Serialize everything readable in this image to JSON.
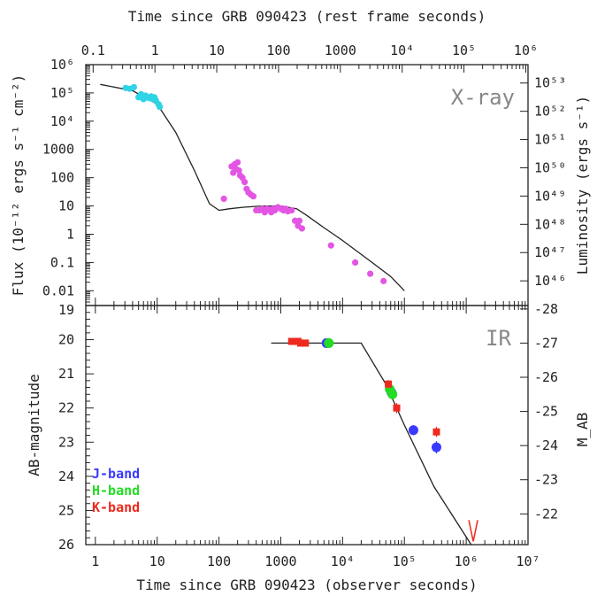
{
  "chart_data": [
    {
      "type": "scatter",
      "panel": "top",
      "panel_label": "X-ray",
      "x_top_label": "Time since GRB 090423 (rest frame seconds)",
      "y_left_label": "Flux (10⁻¹² ergs s⁻¹ cm⁻²)",
      "y_right_label": "Luminosity (ergs s⁻¹)",
      "x_scale": "log",
      "y_scale": "log",
      "xlim_observer_seconds": [
        0.7,
        10000000
      ],
      "ylim_flux": [
        0.003,
        1000000
      ],
      "x_top_ticks": [
        "0.1",
        "1",
        "10",
        "100",
        "1000",
        "10⁴",
        "10⁵",
        "10⁶"
      ],
      "y_left_ticks": [
        "0.01",
        "0.1",
        "1",
        "10",
        "100",
        "1000",
        "10⁴",
        "10⁵",
        "10⁶"
      ],
      "y_right_ticks": [
        "10⁴⁶",
        "10⁴⁷",
        "10⁴⁸",
        "10⁴⁹",
        "10⁵⁰",
        "10⁵¹",
        "10⁵²",
        "10⁵³"
      ],
      "series": [
        {
          "color": "#2ed3e6",
          "x": [
            3.1,
            3.6,
            4.2,
            5.0,
            5.5,
            6.0,
            6.5,
            7.0,
            7.5,
            8.0,
            8.5,
            9.0,
            9.5,
            10.5,
            11.0
          ],
          "y": [
            150000,
            140000,
            160000,
            70000,
            90000,
            60000,
            80000,
            70000,
            65000,
            75000,
            60000,
            70000,
            55000,
            40000,
            32000
          ]
        },
        {
          "color": "#e455e4",
          "x": [
            120,
            160,
            170,
            180,
            190,
            200,
            210,
            220,
            240,
            260,
            280,
            300,
            330,
            360,
            400,
            450,
            500,
            550,
            600,
            650,
            700,
            750,
            800,
            900,
            1000,
            1100,
            1200,
            1300,
            1500,
            1700,
            1900,
            2000,
            2200,
            6500,
            16000,
            28000,
            46000
          ],
          "y": [
            18,
            250,
            150,
            300,
            200,
            350,
            180,
            120,
            100,
            70,
            40,
            30,
            25,
            22,
            7,
            7,
            8,
            6,
            8,
            7.5,
            6,
            8,
            7,
            9,
            8,
            7,
            8,
            6.5,
            7,
            3,
            2,
            3,
            1.6,
            0.4,
            0.1,
            0.04,
            0.022
          ]
        }
      ],
      "model_curve": {
        "color": "#222222",
        "x": [
          1.2,
          4,
          10,
          20,
          40,
          70,
          100,
          150,
          250,
          500,
          1000,
          1800,
          2500,
          5000,
          10000,
          30000,
          60000,
          100000
        ],
        "y": [
          200000,
          120000,
          40000,
          4000,
          180,
          12,
          7,
          8,
          9,
          10,
          10,
          8,
          5,
          1.7,
          0.6,
          0.1,
          0.032,
          0.01
        ]
      }
    },
    {
      "type": "scatter",
      "panel": "bottom",
      "panel_label": "IR",
      "x_bottom_label": "Time since GRB 090423 (observer seconds)",
      "y_left_label": "AB-magnitude",
      "y_right_label": "M_AB",
      "x_scale": "log",
      "xlim_observer_seconds": [
        0.7,
        10000000
      ],
      "ylim_ab_magnitude": [
        26,
        19
      ],
      "x_bottom_ticks": [
        "1",
        "10",
        "100",
        "1000",
        "10⁴",
        "10⁵",
        "10⁶",
        "10⁷"
      ],
      "y_left_ticks": [
        "19",
        "20",
        "21",
        "22",
        "23",
        "24",
        "25",
        "26"
      ],
      "y_right_ticks": [
        "-28",
        "-27",
        "-26",
        "-25",
        "-24",
        "-23",
        "-22"
      ],
      "legend": [
        "J-band",
        "H-band",
        "K-band"
      ],
      "legend_placement": "lower-left",
      "series": [
        {
          "name": "J-band",
          "color": "#3a3aff",
          "marker": "circle",
          "x": [
            5500,
            62000,
            140000,
            330000
          ],
          "y": [
            20.1,
            21.55,
            22.65,
            23.15
          ],
          "yerr": [
            0.08,
            0.12,
            0.15,
            0.18
          ]
        },
        {
          "name": "H-band",
          "color": "#22dd22",
          "marker": "circle",
          "x": [
            6000,
            58000,
            64000
          ],
          "y": [
            20.1,
            21.45,
            21.6
          ],
          "yerr": [
            0.08,
            0.12,
            0.12
          ]
        },
        {
          "name": "K-band",
          "color": "#ee2a1e",
          "marker": "square",
          "x": [
            1500,
            1700,
            1900,
            2100,
            2500,
            55000,
            75000,
            330000
          ],
          "y": [
            20.05,
            20.05,
            20.05,
            20.1,
            20.1,
            21.3,
            22.0,
            22.7
          ],
          "yerr": [
            0.06,
            0.06,
            0.06,
            0.06,
            0.06,
            0.12,
            0.15,
            0.15
          ]
        }
      ],
      "upper_limit": {
        "x": 1300000,
        "y": 25.8,
        "color": "#ee2a1e"
      },
      "model_curve": {
        "color": "#222222",
        "x": [
          700,
          20000,
          50000,
          100000,
          300000,
          1200000
        ],
        "y": [
          20.1,
          20.1,
          21.3,
          22.5,
          24.3,
          26.0
        ]
      }
    }
  ]
}
